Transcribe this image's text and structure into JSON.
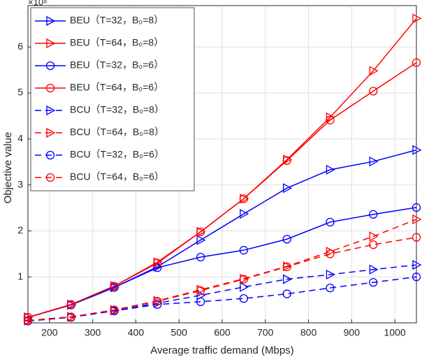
{
  "chart_data": {
    "type": "line",
    "x_label": "Average traffic demand (Mbps)",
    "y_label": "Objective value",
    "y_multiplier": "×10⁸",
    "x": [
      150,
      250,
      350,
      450,
      550,
      650,
      750,
      850,
      950,
      1050
    ],
    "xlim": [
      150,
      1050
    ],
    "xticks": [
      200,
      300,
      400,
      500,
      600,
      700,
      800,
      900,
      1000
    ],
    "ylim": [
      0,
      6.9
    ],
    "yticks": [
      1,
      2,
      3,
      4,
      5,
      6
    ],
    "grid": true,
    "legend_position": "upper-left",
    "series": [
      {
        "name": "BEU（T=32，B₀=8）",
        "color": "#0000ff",
        "marker": "triangle",
        "dash": false,
        "values": [
          0.12,
          0.39,
          0.77,
          1.22,
          1.8,
          2.37,
          2.93,
          3.33,
          3.51,
          3.76
        ]
      },
      {
        "name": "BEU（T=64，B₀=8）",
        "color": "#ff0000",
        "marker": "triangle",
        "dash": false,
        "values": [
          0.12,
          0.4,
          0.8,
          1.32,
          1.98,
          2.7,
          3.55,
          4.47,
          5.48,
          6.62
        ]
      },
      {
        "name": "BEU（T=32，B₀=6）",
        "color": "#0000ff",
        "marker": "circle",
        "dash": false,
        "values": [
          0.12,
          0.39,
          0.77,
          1.2,
          1.43,
          1.58,
          1.82,
          2.19,
          2.36,
          2.51
        ]
      },
      {
        "name": "BEU（T=64，B₀=6）",
        "color": "#ff0000",
        "marker": "circle",
        "dash": false,
        "values": [
          0.12,
          0.4,
          0.8,
          1.3,
          1.98,
          2.7,
          3.53,
          4.41,
          5.04,
          5.66
        ]
      },
      {
        "name": "BCU（T=32，B₀=8）",
        "color": "#0000ff",
        "marker": "triangle",
        "dash": true,
        "values": [
          0.05,
          0.13,
          0.27,
          0.43,
          0.6,
          0.78,
          0.95,
          1.05,
          1.16,
          1.26
        ]
      },
      {
        "name": "BCU（T=64，B₀=8）",
        "color": "#ff0000",
        "marker": "triangle",
        "dash": true,
        "values": [
          0.05,
          0.13,
          0.28,
          0.48,
          0.72,
          0.96,
          1.23,
          1.55,
          1.88,
          2.25
        ]
      },
      {
        "name": "BCU（T=32，B₀=6）",
        "color": "#0000ff",
        "marker": "circle",
        "dash": true,
        "values": [
          0.04,
          0.12,
          0.26,
          0.4,
          0.46,
          0.53,
          0.63,
          0.76,
          0.88,
          1.0
        ]
      },
      {
        "name": "BCU（T=64，B₀=6）",
        "color": "#ff0000",
        "marker": "circle",
        "dash": true,
        "values": [
          0.05,
          0.13,
          0.28,
          0.47,
          0.7,
          0.95,
          1.22,
          1.5,
          1.7,
          1.86
        ]
      }
    ]
  }
}
